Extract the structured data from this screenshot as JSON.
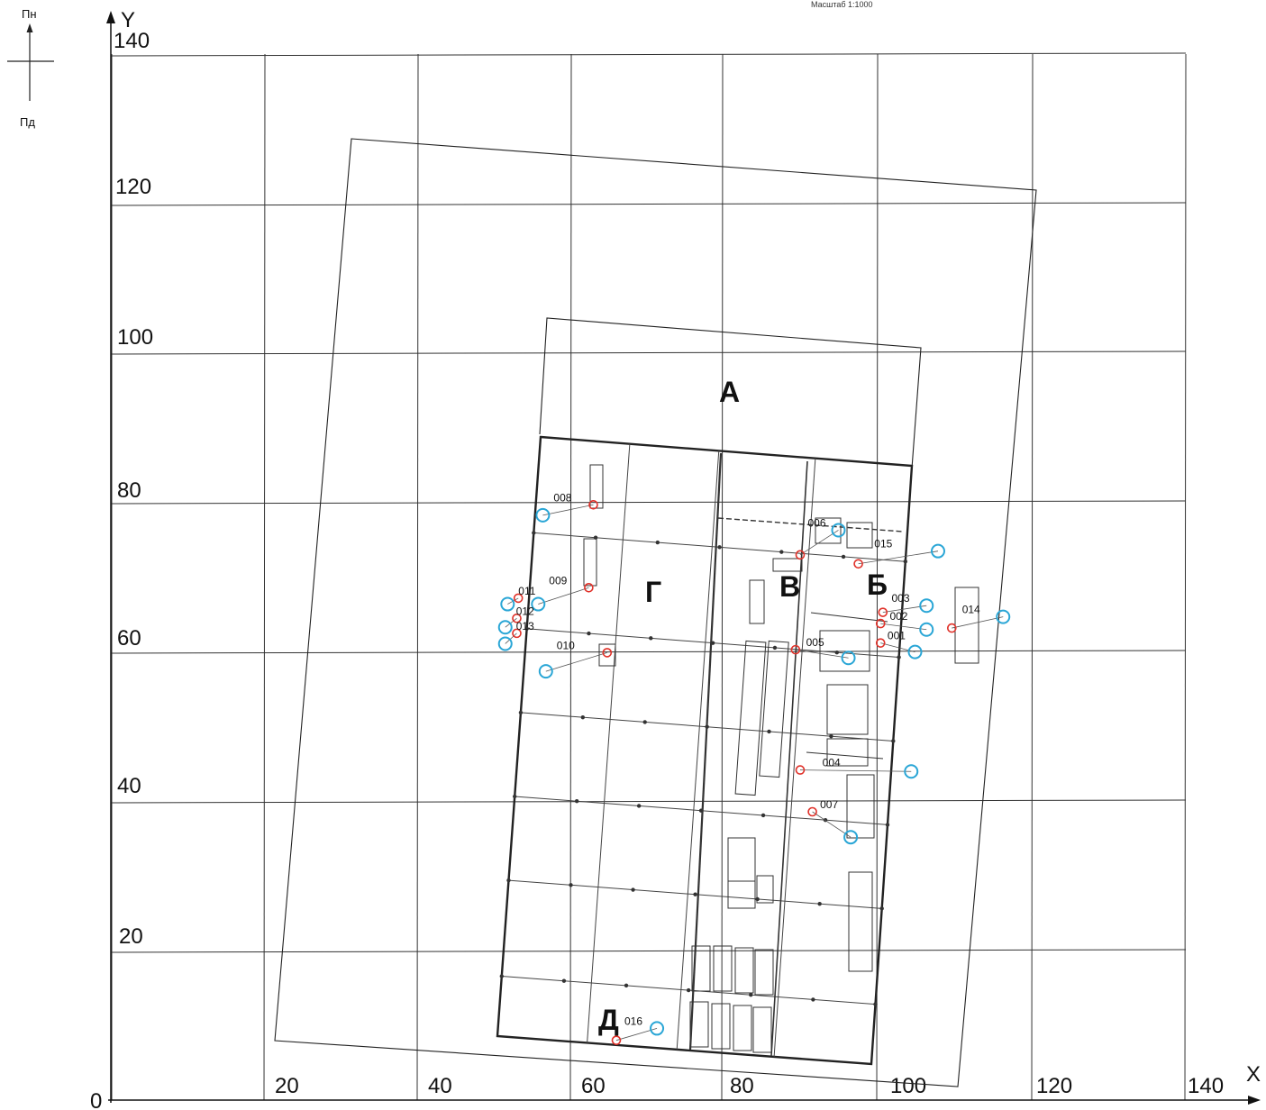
{
  "header": {
    "scale_text": "Масштаб 1:1000"
  },
  "compass": {
    "north": "Пн",
    "south": "Пд"
  },
  "axes": {
    "origin": "0",
    "x_name": "X",
    "y_name": "Y",
    "x_ticks": [
      "20",
      "40",
      "60",
      "80",
      "100",
      "120",
      "140"
    ],
    "y_ticks": [
      "20",
      "40",
      "60",
      "80",
      "100",
      "120",
      "140"
    ]
  },
  "zones": [
    "А",
    "Б",
    "В",
    "Г",
    "Д"
  ],
  "points": [
    {
      "label": "001",
      "red": [
        100.5,
        61.2
      ],
      "blue": [
        105,
        60
      ]
    },
    {
      "label": "002",
      "red": [
        100.5,
        63.8
      ],
      "blue": [
        106.5,
        63
      ]
    },
    {
      "label": "003",
      "red": [
        100.8,
        65.3
      ],
      "blue": [
        106.5,
        66.2
      ]
    },
    {
      "label": "004",
      "red": [
        90,
        44.2
      ],
      "blue": [
        104.5,
        44
      ]
    },
    {
      "label": "005",
      "red": [
        89.4,
        60.3
      ],
      "blue": [
        96.3,
        59.2
      ]
    },
    {
      "label": "006",
      "red": [
        90,
        73
      ],
      "blue": [
        95,
        76.3
      ]
    },
    {
      "label": "007",
      "red": [
        91.6,
        38.6
      ],
      "blue": [
        96.6,
        35.2
      ]
    },
    {
      "label": "008",
      "red": [
        63,
        79.7
      ],
      "blue": [
        56.4,
        78.3
      ]
    },
    {
      "label": "009",
      "red": [
        62.4,
        68.6
      ],
      "blue": [
        55.8,
        66.4
      ]
    },
    {
      "label": "010",
      "red": [
        64.8,
        59.9
      ],
      "blue": [
        56.8,
        57.4
      ]
    },
    {
      "label": "011",
      "red": [
        53.2,
        67.2
      ],
      "blue": [
        51.8,
        66.4
      ]
    },
    {
      "label": "012",
      "red": [
        53,
        64.5
      ],
      "blue": [
        51.5,
        63.3
      ]
    },
    {
      "label": "013",
      "red": [
        53,
        62.5
      ],
      "blue": [
        51.5,
        61.1
      ]
    },
    {
      "label": "014",
      "red": [
        109.8,
        63.2
      ],
      "blue": [
        116.5,
        64.7
      ]
    },
    {
      "label": "015",
      "red": [
        97.6,
        71.8
      ],
      "blue": [
        108,
        73.5
      ]
    },
    {
      "label": "016",
      "red": [
        66,
        8
      ],
      "blue": [
        71.3,
        9.6
      ]
    }
  ]
}
